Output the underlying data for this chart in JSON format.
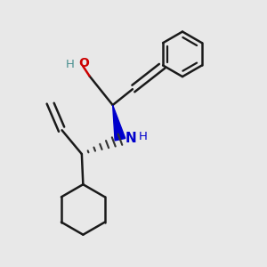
{
  "bg_color": "#e8e8e8",
  "bond_color": "#1a1a1a",
  "n_color": "#0000cc",
  "o_color": "#cc0000",
  "h_color": "#4a9090",
  "line_width": 1.8,
  "figsize": [
    3.0,
    3.0
  ],
  "dpi": 100,
  "xlim": [
    0.0,
    1.0
  ],
  "ylim": [
    0.0,
    1.0
  ]
}
